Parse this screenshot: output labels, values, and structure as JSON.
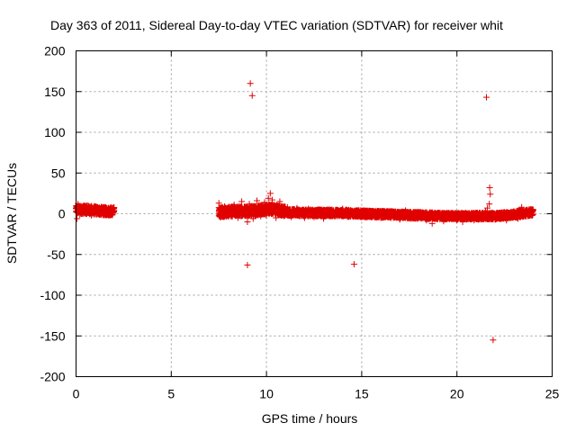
{
  "chart_data": {
    "type": "scatter",
    "title": "Day 363 of 2011, Sidereal Day-to-day VTEC variation (SDTVAR) for receiver whit",
    "xlabel": "GPS time / hours",
    "ylabel": "SDTVAR / TECUs",
    "xlim": [
      0,
      25
    ],
    "ylim": [
      -200,
      200
    ],
    "xticks": [
      0,
      5,
      10,
      15,
      20,
      25
    ],
    "yticks": [
      -200,
      -150,
      -100,
      -50,
      0,
      50,
      100,
      150,
      200
    ],
    "grid": true,
    "marker": "+",
    "color": "#e00000",
    "series": [
      {
        "name": "SDTVAR",
        "dense_segments": [
          {
            "x_start": 0.0,
            "x_end": 2.0,
            "center": [
              [
                0.0,
                5
              ],
              [
                0.5,
                5
              ],
              [
                1.0,
                4
              ],
              [
                1.5,
                3
              ],
              [
                2.0,
                3
              ]
            ],
            "spread": 5
          },
          {
            "x_start": 7.5,
            "x_end": 11.0,
            "center": [
              [
                7.5,
                2
              ],
              [
                8.5,
                3
              ],
              [
                9.5,
                4
              ],
              [
                10.2,
                6
              ],
              [
                11.0,
                3
              ]
            ],
            "spread": 6
          },
          {
            "x_start": 11.0,
            "x_end": 15.0,
            "center": [
              [
                11.0,
                2
              ],
              [
                12.0,
                1
              ],
              [
                13.0,
                1
              ],
              [
                14.0,
                1
              ],
              [
                15.0,
                0
              ]
            ],
            "spread": 4
          },
          {
            "x_start": 15.0,
            "x_end": 21.0,
            "center": [
              [
                15.0,
                0
              ],
              [
                16.5,
                -1
              ],
              [
                18.0,
                -2
              ],
              [
                19.5,
                -3
              ],
              [
                21.0,
                -3
              ]
            ],
            "spread": 4
          },
          {
            "x_start": 21.0,
            "x_end": 24.0,
            "center": [
              [
                21.0,
                -3
              ],
              [
                22.0,
                -3
              ],
              [
                23.0,
                -1
              ],
              [
                24.0,
                2
              ]
            ],
            "spread": 4
          }
        ],
        "points": [
          [
            0.0,
            7
          ],
          [
            0.05,
            -6
          ],
          [
            0.1,
            12
          ],
          [
            0.2,
            -1
          ],
          [
            0.3,
            8
          ],
          [
            0.4,
            1
          ],
          [
            0.6,
            10
          ],
          [
            0.8,
            -2
          ],
          [
            1.0,
            9
          ],
          [
            1.2,
            0
          ],
          [
            1.4,
            7
          ],
          [
            1.6,
            -1
          ],
          [
            1.8,
            6
          ],
          [
            2.0,
            4
          ],
          [
            7.5,
            13
          ],
          [
            7.6,
            -4
          ],
          [
            7.8,
            9
          ],
          [
            8.0,
            -3
          ],
          [
            8.3,
            11
          ],
          [
            8.5,
            -5
          ],
          [
            8.7,
            15
          ],
          [
            8.9,
            1
          ],
          [
            9.0,
            -10
          ],
          [
            9.1,
            12
          ],
          [
            9.3,
            -6
          ],
          [
            9.5,
            16
          ],
          [
            9.7,
            -3
          ],
          [
            9.9,
            14
          ],
          [
            10.0,
            -2
          ],
          [
            10.1,
            19
          ],
          [
            10.2,
            25
          ],
          [
            10.3,
            17
          ],
          [
            10.5,
            -5
          ],
          [
            10.7,
            15
          ],
          [
            10.9,
            0
          ],
          [
            11.1,
            8
          ],
          [
            11.3,
            -4
          ],
          [
            11.6,
            7
          ],
          [
            12.0,
            -5
          ],
          [
            12.2,
            6
          ],
          [
            12.5,
            -4
          ],
          [
            12.8,
            5
          ],
          [
            13.0,
            -6
          ],
          [
            13.3,
            5
          ],
          [
            13.6,
            -3
          ],
          [
            14.0,
            6
          ],
          [
            14.3,
            -4
          ],
          [
            14.7,
            4
          ],
          [
            15.0,
            -3
          ],
          [
            15.5,
            3
          ],
          [
            16.0,
            -5
          ],
          [
            16.5,
            2
          ],
          [
            17.0,
            -7
          ],
          [
            17.3,
            4
          ],
          [
            17.6,
            -6
          ],
          [
            18.0,
            1
          ],
          [
            18.4,
            -8
          ],
          [
            18.7,
            -12
          ],
          [
            19.0,
            -5
          ],
          [
            19.3,
            -9
          ],
          [
            19.6,
            -2
          ],
          [
            20.0,
            -8
          ],
          [
            20.3,
            -10
          ],
          [
            20.6,
            -4
          ],
          [
            20.9,
            -8
          ],
          [
            21.2,
            -5
          ],
          [
            21.5,
            3
          ],
          [
            21.6,
            7
          ],
          [
            21.7,
            12
          ],
          [
            21.8,
            -6
          ],
          [
            22.0,
            -7
          ],
          [
            22.3,
            -4
          ],
          [
            22.6,
            -8
          ],
          [
            22.9,
            -2
          ],
          [
            23.2,
            -6
          ],
          [
            23.4,
            8
          ],
          [
            23.6,
            -3
          ],
          [
            23.8,
            1
          ],
          [
            24.0,
            4
          ],
          [
            9.15,
            160
          ],
          [
            9.25,
            145
          ],
          [
            9.0,
            -63
          ],
          [
            14.6,
            -62
          ],
          [
            21.55,
            143
          ],
          [
            21.72,
            32
          ],
          [
            21.75,
            24
          ],
          [
            21.9,
            -155
          ]
        ]
      }
    ]
  }
}
